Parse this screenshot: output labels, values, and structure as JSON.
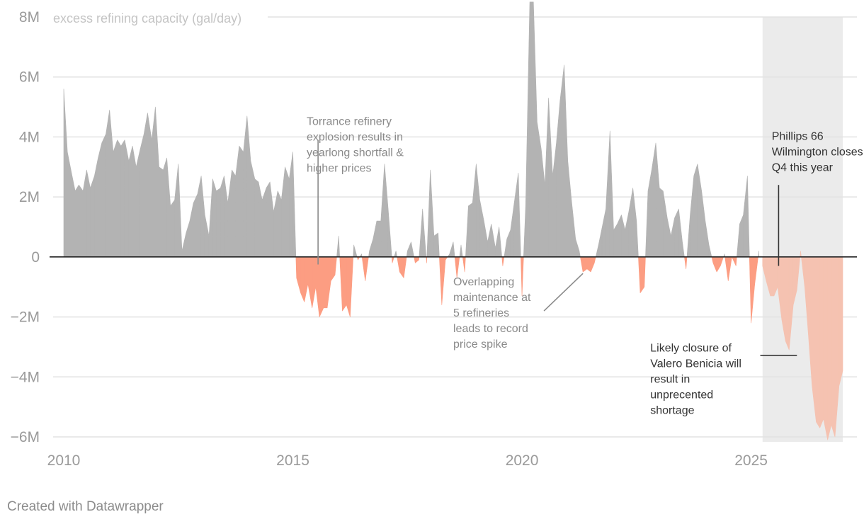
{
  "chart_data": {
    "type": "area",
    "y_label": "excess refining capacity (gal/day)",
    "y_ticks": [
      {
        "value": 8000000,
        "label": "8M"
      },
      {
        "value": 6000000,
        "label": "6M"
      },
      {
        "value": 4000000,
        "label": "4M"
      },
      {
        "value": 2000000,
        "label": "2M"
      },
      {
        "value": 0,
        "label": "0"
      },
      {
        "value": -2000000,
        "label": "−2M"
      },
      {
        "value": -4000000,
        "label": "−4M"
      },
      {
        "value": -6000000,
        "label": "−6M"
      }
    ],
    "x_ticks": [
      {
        "value": 2010,
        "label": "2010"
      },
      {
        "value": 2015,
        "label": "2015"
      },
      {
        "value": 2020,
        "label": "2020"
      },
      {
        "value": 2025,
        "label": "2025"
      }
    ],
    "x_range": [
      2009.6,
      2027.25
    ],
    "y_range": [
      -6200000,
      8500000
    ],
    "projection_range": [
      2025.25,
      2027.0
    ],
    "colors": {
      "surplus": "#b3b3b3",
      "shortfall": "#fc9d82",
      "projected": "#f5c2b1",
      "projection_band": "#ebebeb",
      "gridline": "#e2e2e2",
      "baseline": "#222222"
    },
    "series": [
      {
        "name": "historical",
        "points": [
          [
            2010.0,
            5.6
          ],
          [
            2010.08,
            3.5
          ],
          [
            2010.17,
            2.8
          ],
          [
            2010.25,
            2.2
          ],
          [
            2010.33,
            2.4
          ],
          [
            2010.42,
            2.2
          ],
          [
            2010.5,
            2.9
          ],
          [
            2010.58,
            2.3
          ],
          [
            2010.67,
            2.7
          ],
          [
            2010.75,
            3.3
          ],
          [
            2010.83,
            3.8
          ],
          [
            2010.92,
            4.1
          ],
          [
            2011.0,
            4.9
          ],
          [
            2011.08,
            3.5
          ],
          [
            2011.17,
            3.9
          ],
          [
            2011.25,
            3.7
          ],
          [
            2011.33,
            3.9
          ],
          [
            2011.42,
            3.2
          ],
          [
            2011.5,
            3.7
          ],
          [
            2011.58,
            3.0
          ],
          [
            2011.67,
            3.6
          ],
          [
            2011.75,
            4.1
          ],
          [
            2011.83,
            4.8
          ],
          [
            2011.92,
            3.9
          ],
          [
            2012.0,
            5.0
          ],
          [
            2012.08,
            3.0
          ],
          [
            2012.17,
            2.9
          ],
          [
            2012.25,
            3.3
          ],
          [
            2012.33,
            1.7
          ],
          [
            2012.42,
            1.9
          ],
          [
            2012.5,
            3.1
          ],
          [
            2012.58,
            0.2
          ],
          [
            2012.67,
            0.8
          ],
          [
            2012.75,
            1.2
          ],
          [
            2012.83,
            1.8
          ],
          [
            2012.92,
            2.1
          ],
          [
            2013.0,
            2.7
          ],
          [
            2013.08,
            1.4
          ],
          [
            2013.17,
            0.7
          ],
          [
            2013.25,
            2.6
          ],
          [
            2013.33,
            2.2
          ],
          [
            2013.42,
            2.3
          ],
          [
            2013.5,
            2.7
          ],
          [
            2013.58,
            1.8
          ],
          [
            2013.67,
            2.9
          ],
          [
            2013.75,
            2.7
          ],
          [
            2013.83,
            3.7
          ],
          [
            2013.92,
            3.5
          ],
          [
            2014.0,
            4.7
          ],
          [
            2014.08,
            3.2
          ],
          [
            2014.17,
            2.6
          ],
          [
            2014.25,
            2.5
          ],
          [
            2014.33,
            1.9
          ],
          [
            2014.42,
            2.3
          ],
          [
            2014.5,
            2.5
          ],
          [
            2014.58,
            1.5
          ],
          [
            2014.67,
            2.2
          ],
          [
            2014.75,
            1.9
          ],
          [
            2014.83,
            3.0
          ],
          [
            2014.92,
            2.6
          ],
          [
            2015.0,
            3.5
          ],
          [
            2015.08,
            -0.7
          ],
          [
            2015.17,
            -1.2
          ],
          [
            2015.25,
            -1.5
          ],
          [
            2015.33,
            -0.9
          ],
          [
            2015.42,
            -1.7
          ],
          [
            2015.5,
            -1.0
          ],
          [
            2015.58,
            -2.0
          ],
          [
            2015.67,
            -1.7
          ],
          [
            2015.75,
            -1.7
          ],
          [
            2015.83,
            -0.8
          ],
          [
            2015.92,
            -0.6
          ],
          [
            2016.0,
            0.7
          ],
          [
            2016.08,
            -1.8
          ],
          [
            2016.17,
            -1.6
          ],
          [
            2016.25,
            -2.0
          ],
          [
            2016.33,
            0.4
          ],
          [
            2016.42,
            -0.1
          ],
          [
            2016.5,
            0.1
          ],
          [
            2016.58,
            -0.8
          ],
          [
            2016.67,
            0.2
          ],
          [
            2016.75,
            0.6
          ],
          [
            2016.83,
            1.2
          ],
          [
            2016.92,
            1.2
          ],
          [
            2017.0,
            3.1
          ],
          [
            2017.08,
            1.6
          ],
          [
            2017.17,
            -0.2
          ],
          [
            2017.25,
            0.2
          ],
          [
            2017.33,
            -0.5
          ],
          [
            2017.42,
            -0.7
          ],
          [
            2017.5,
            0.2
          ],
          [
            2017.58,
            0.5
          ],
          [
            2017.67,
            -0.2
          ],
          [
            2017.75,
            -0.1
          ],
          [
            2017.83,
            1.6
          ],
          [
            2017.92,
            -0.2
          ],
          [
            2018.0,
            2.9
          ],
          [
            2018.08,
            0.7
          ],
          [
            2018.17,
            0.8
          ],
          [
            2018.25,
            -1.6
          ],
          [
            2018.33,
            -0.1
          ],
          [
            2018.42,
            0.1
          ],
          [
            2018.5,
            0.5
          ],
          [
            2018.58,
            -0.7
          ],
          [
            2018.67,
            0.4
          ],
          [
            2018.75,
            -0.5
          ],
          [
            2018.83,
            1.7
          ],
          [
            2018.92,
            1.8
          ],
          [
            2019.0,
            3.1
          ],
          [
            2019.08,
            1.9
          ],
          [
            2019.17,
            1.2
          ],
          [
            2019.25,
            0.5
          ],
          [
            2019.33,
            1.1
          ],
          [
            2019.42,
            0.3
          ],
          [
            2019.5,
            1.0
          ],
          [
            2019.58,
            -0.3
          ],
          [
            2019.67,
            0.6
          ],
          [
            2019.75,
            0.9
          ],
          [
            2019.83,
            1.8
          ],
          [
            2019.92,
            2.8
          ],
          [
            2020.0,
            -1.3
          ],
          [
            2020.08,
            1.7
          ],
          [
            2020.17,
            8.5
          ],
          [
            2020.25,
            8.5
          ],
          [
            2020.33,
            4.5
          ],
          [
            2020.42,
            3.6
          ],
          [
            2020.5,
            2.4
          ],
          [
            2020.58,
            5.3
          ],
          [
            2020.67,
            2.7
          ],
          [
            2020.75,
            3.8
          ],
          [
            2020.83,
            5.2
          ],
          [
            2020.92,
            6.4
          ],
          [
            2021.0,
            3.2
          ],
          [
            2021.08,
            1.9
          ],
          [
            2021.17,
            0.6
          ],
          [
            2021.25,
            0.2
          ],
          [
            2021.33,
            -0.5
          ],
          [
            2021.42,
            -0.4
          ],
          [
            2021.5,
            -0.5
          ],
          [
            2021.58,
            -0.2
          ],
          [
            2021.67,
            0.4
          ],
          [
            2021.75,
            1.0
          ],
          [
            2021.83,
            1.6
          ],
          [
            2021.92,
            4.2
          ],
          [
            2022.0,
            0.9
          ],
          [
            2022.08,
            1.1
          ],
          [
            2022.17,
            1.4
          ],
          [
            2022.25,
            0.9
          ],
          [
            2022.33,
            1.5
          ],
          [
            2022.42,
            2.3
          ],
          [
            2022.5,
            1.2
          ],
          [
            2022.58,
            -1.2
          ],
          [
            2022.67,
            -1.0
          ],
          [
            2022.75,
            2.2
          ],
          [
            2022.83,
            2.9
          ],
          [
            2022.92,
            3.8
          ],
          [
            2023.0,
            2.3
          ],
          [
            2023.08,
            2.2
          ],
          [
            2023.17,
            1.3
          ],
          [
            2023.25,
            0.7
          ],
          [
            2023.33,
            1.3
          ],
          [
            2023.42,
            1.6
          ],
          [
            2023.5,
            0.5
          ],
          [
            2023.58,
            -0.4
          ],
          [
            2023.67,
            1.4
          ],
          [
            2023.75,
            2.7
          ],
          [
            2023.83,
            3.1
          ],
          [
            2023.92,
            2.2
          ],
          [
            2024.0,
            1.2
          ],
          [
            2024.08,
            0.4
          ],
          [
            2024.17,
            -0.2
          ],
          [
            2024.25,
            -0.5
          ],
          [
            2024.33,
            -0.3
          ],
          [
            2024.42,
            0.1
          ],
          [
            2024.5,
            -0.8
          ],
          [
            2024.58,
            0.0
          ],
          [
            2024.67,
            -0.3
          ],
          [
            2024.75,
            1.1
          ],
          [
            2024.83,
            1.4
          ],
          [
            2024.92,
            2.7
          ],
          [
            2025.0,
            -2.2
          ],
          [
            2025.08,
            -0.9
          ],
          [
            2025.17,
            0.2
          ]
        ]
      },
      {
        "name": "projected",
        "points": [
          [
            2025.25,
            -0.3
          ],
          [
            2025.33,
            -0.8
          ],
          [
            2025.42,
            -1.3
          ],
          [
            2025.5,
            -1.3
          ],
          [
            2025.58,
            -1.0
          ],
          [
            2025.67,
            -2.1
          ],
          [
            2025.75,
            -2.8
          ],
          [
            2025.83,
            -3.1
          ],
          [
            2025.92,
            -1.6
          ],
          [
            2026.0,
            -1.1
          ],
          [
            2026.08,
            0.2
          ],
          [
            2026.17,
            -1.0
          ],
          [
            2026.25,
            -2.6
          ],
          [
            2026.33,
            -4.3
          ],
          [
            2026.42,
            -5.5
          ],
          [
            2026.5,
            -5.7
          ],
          [
            2026.58,
            -5.4
          ],
          [
            2026.67,
            -6.1
          ],
          [
            2026.75,
            -5.6
          ],
          [
            2026.83,
            -6.0
          ],
          [
            2026.92,
            -4.3
          ],
          [
            2027.0,
            -3.8
          ]
        ]
      }
    ],
    "annotations": [
      {
        "name": "torrance",
        "lines": [
          "Torrance refinery",
          "explosion results in",
          "yearlong shortfall &",
          "higher prices"
        ],
        "style": "grey",
        "x": 2015.3,
        "y": 4.4,
        "anchor": "start",
        "line_to": [
          2015.55,
          3.9,
          2015.55,
          -0.25
        ]
      },
      {
        "name": "overlapping",
        "lines": [
          "Overlapping",
          "maintenance at",
          "5 refineries",
          "leads to record",
          "price spike"
        ],
        "style": "grey",
        "x": 2018.5,
        "y": -0.95,
        "anchor": "start",
        "line_to": [
          2020.48,
          -1.8,
          2021.33,
          -0.55
        ]
      },
      {
        "name": "phillips",
        "lines": [
          "Phillips 66",
          "Wilmington closes",
          "Q4 this year"
        ],
        "style": "dark",
        "x": 2025.45,
        "y": 3.9,
        "anchor": "start",
        "line_to": [
          2025.6,
          2.4,
          2025.6,
          -0.3
        ]
      },
      {
        "name": "benicia",
        "lines": [
          "Likely closure of",
          "Valero Benicia will",
          "result in",
          "unprecented",
          "shortage"
        ],
        "style": "dark",
        "x": 2022.8,
        "y": -3.15,
        "anchor": "start",
        "line_to": [
          2025.2,
          -3.28,
          2026.0,
          -3.28
        ]
      }
    ]
  },
  "footer": {
    "credit": "Created with Datawrapper"
  }
}
